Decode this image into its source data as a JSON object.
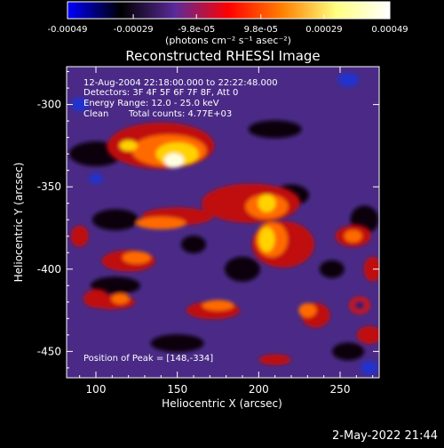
{
  "colorbar": {
    "ticks": [
      "-0.00049",
      "-0.00029",
      "-9.8e-05",
      "9.8e-05",
      "0.00029",
      "0.00049"
    ],
    "tick_values": [
      -0.00049,
      -0.00029,
      -9.8e-05,
      9.8e-05,
      0.00029,
      0.00049
    ],
    "range": [
      -0.00049,
      0.00049
    ],
    "units": "(photons cm⁻² s⁻¹ asec⁻²)",
    "colors": [
      "#0000ff",
      "#000000",
      "#5a2a9a",
      "#ff0000",
      "#ff8000",
      "#ffff80",
      "#ffffff"
    ]
  },
  "chart_data": {
    "type": "heatmap",
    "title": "Reconstructed RHESSI Image",
    "xlabel": "Heliocentric X (arcsec)",
    "ylabel": "Heliocentric Y (arcsec)",
    "xlim": [
      82,
      274
    ],
    "ylim": [
      -466,
      -277
    ],
    "xticks": [
      100,
      150,
      200,
      250
    ],
    "yticks": [
      -450,
      -400,
      -350,
      -300
    ],
    "annotations": [
      "12-Aug-2004 22:18:00.000 to 22:22:48.000",
      "Detectors: 3F 4F 5F 6F 7F 8F, Att 0",
      "Energy Range: 12.0 - 25.0 keV",
      "Clean",
      "Total counts: 4.77E+03"
    ],
    "peak_label": "Position of Peak = [148,-334]",
    "peak": [
      148,
      -334
    ]
  },
  "footer": {
    "timestamp": "2-May-2022 21:44"
  }
}
